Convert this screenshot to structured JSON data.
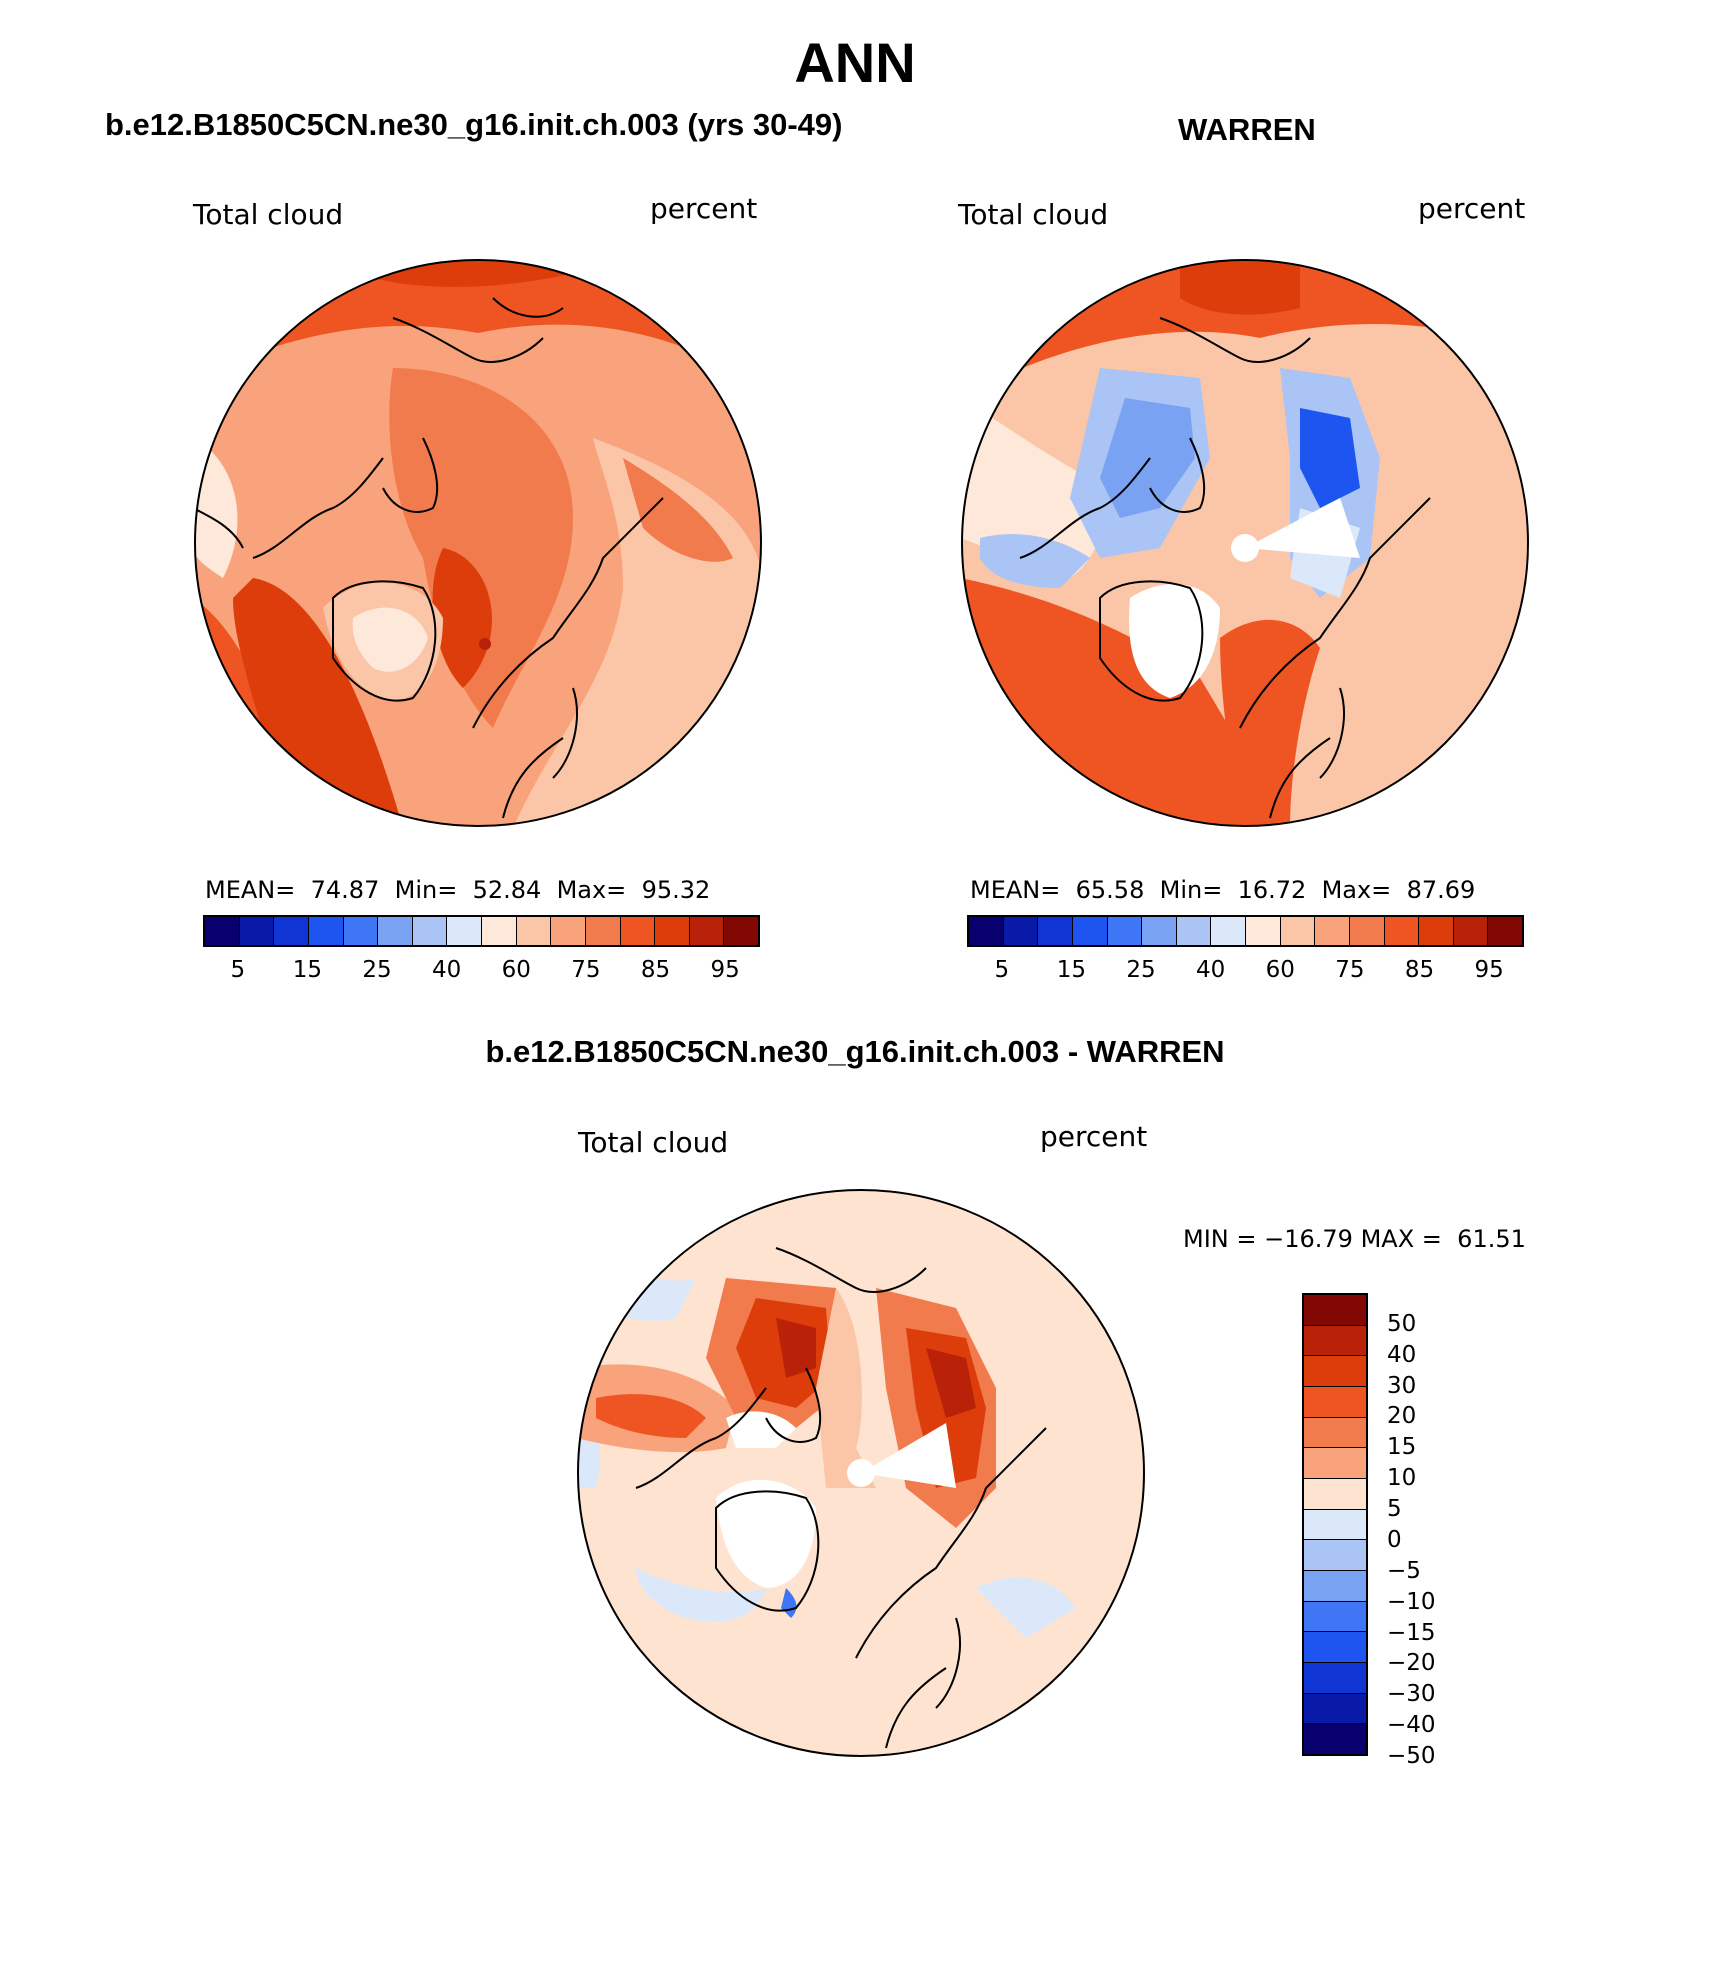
{
  "title": "ANN",
  "panels": {
    "top_left": {
      "case_title": "b.e12.B1850C5CN.ne30_g16.init.ch.003 (yrs 30-49)",
      "variable": "Total cloud",
      "units": "percent",
      "mean_label": "MEAN=",
      "mean": "74.87",
      "min_label": "Min=",
      "min": "52.84",
      "max_label": "Max=",
      "max": "95.32"
    },
    "top_right": {
      "case_title": "WARREN",
      "variable": "Total cloud",
      "units": "percent",
      "mean_label": "MEAN=",
      "mean": "65.58",
      "min_label": "Min=",
      "min": "16.72",
      "max_label": "Max=",
      "max": "87.69"
    },
    "bottom": {
      "case_title": "b.e12.B1850C5CN.ne30_g16.init.ch.003 - WARREN",
      "variable": "Total cloud",
      "units": "percent",
      "min_label": "MIN =",
      "min": "−16.79",
      "max_label": "MAX =",
      "max": "61.51"
    }
  },
  "colorbar_abs": {
    "colors": [
      "#08006e",
      "#0a1aa8",
      "#0f35d5",
      "#1e55f0",
      "#3f76f5",
      "#7aa2f3",
      "#a9c4f5",
      "#dbe8fa",
      "#fde8da",
      "#fbc6a8",
      "#f8a37c",
      "#f27b4e",
      "#ee5523",
      "#dd3d0b",
      "#b92109",
      "#820803"
    ],
    "tick_labels": [
      "5",
      "15",
      "25",
      "40",
      "60",
      "75",
      "85",
      "95"
    ]
  },
  "colorbar_diff": {
    "colors": [
      "#820803",
      "#b92109",
      "#dd3d0b",
      "#ee5523",
      "#f27b4e",
      "#f8a37c",
      "#fde3d0",
      "#dbe8fa",
      "#a9c4f5",
      "#7aa2f3",
      "#3f76f5",
      "#1e55f0",
      "#0f35d5",
      "#0a1aa8",
      "#08006e"
    ],
    "tick_labels": [
      "50",
      "40",
      "30",
      "20",
      "15",
      "10",
      "5",
      "0",
      "−5",
      "−10",
      "−15",
      "−20",
      "−30",
      "−40",
      "−50"
    ]
  }
}
